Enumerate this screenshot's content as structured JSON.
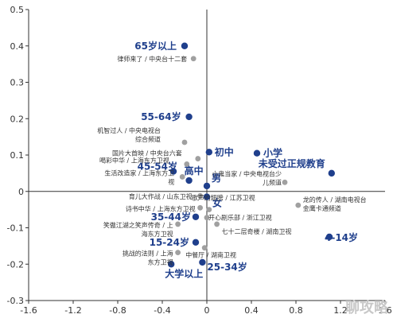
{
  "chart_data": {
    "type": "scatter",
    "title": "",
    "xlabel": "",
    "ylabel": "",
    "xlim": [
      -1.6,
      1.6
    ],
    "ylim": [
      -0.3,
      0.5
    ],
    "xticks": [
      "-1.6",
      "-1.2",
      "-0.8",
      "-0.4",
      "0",
      "0.4",
      "0.8",
      "1.2",
      "1.6"
    ],
    "yticks": [
      "0.5",
      "0.4",
      "0.3",
      "0.2",
      "0.1",
      "0",
      "-0.1",
      "-0.2",
      "-0.3"
    ],
    "grid": false,
    "colors": {
      "demographic": "#1f3f8c",
      "program": "#a0a0a0",
      "axis": "#333333"
    },
    "series": [
      {
        "name": "",
        "points": [
          {
            "label": "65岁以上",
            "x": -0.2,
            "y": 0.4
          },
          {
            "label": "55-64岁",
            "x": -0.16,
            "y": 0.205
          },
          {
            "label": "初中",
            "x": 0.02,
            "y": 0.108
          },
          {
            "label": "小学",
            "x": 0.45,
            "y": 0.105
          },
          {
            "label": "未受过正规教育",
            "x": 1.12,
            "y": 0.05
          },
          {
            "label": "45-54岁",
            "x": -0.3,
            "y": 0.055
          },
          {
            "label": "高中",
            "x": -0.16,
            "y": 0.03
          },
          {
            "label": "男",
            "x": 0.0,
            "y": 0.015
          },
          {
            "label": "女",
            "x": 0.0,
            "y": -0.015
          },
          {
            "label": "35-44岁",
            "x": -0.1,
            "y": -0.07
          },
          {
            "label": "15-24岁",
            "x": -0.1,
            "y": -0.14
          },
          {
            "label": "4-14岁",
            "x": 1.1,
            "y": -0.125
          },
          {
            "label": "大学以上",
            "x": -0.32,
            "y": -0.2
          },
          {
            "label": "25-34岁",
            "x": -0.04,
            "y": -0.195
          }
        ]
      },
      {
        "name": "",
        "points": [
          {
            "label": "律师来了 / 中央台十二套",
            "x": -0.12,
            "y": 0.365
          },
          {
            "label": "机智过人 / 中央电视台综合频道",
            "x": -0.2,
            "y": 0.135
          },
          {
            "label": "国片大首映 / 中央台六套",
            "x": -0.08,
            "y": 0.09
          },
          {
            "label": "喝彩中华 / 上海东方卫视",
            "x": -0.18,
            "y": 0.075
          },
          {
            "label": "生活改造家 / 上海东方卫视",
            "x": -0.22,
            "y": 0.04
          },
          {
            "label": "小鬼当家 / 中央电视台少儿频道",
            "x": 0.7,
            "y": 0.025
          },
          {
            "label": "育儿大作战 / 山东卫视",
            "x": -0.06,
            "y": -0.012
          },
          {
            "label": "诗书中华 / 上海东方卫视",
            "x": -0.06,
            "y": -0.045
          },
          {
            "label": "龙的传人 / 湖南电视台金鹰卡通频道",
            "x": 0.82,
            "y": -0.038
          },
          {
            "label": "歌声的翅膀 / 江苏卫视",
            "x": 0.02,
            "y": -0.05
          },
          {
            "label": "开心剧乐部 / 浙江卫视",
            "x": 0.0,
            "y": -0.072
          },
          {
            "label": "笑傲江湖之笑声传奇 / 上海东方卫视",
            "x": -0.26,
            "y": -0.09
          },
          {
            "label": "七十二层奇楼 / 湖南卫视",
            "x": 0.09,
            "y": -0.09
          },
          {
            "label": "挑战的法则 / 上海东方卫视",
            "x": -0.26,
            "y": -0.168
          },
          {
            "label": "中餐厅 / 湖南卫视",
            "x": -0.02,
            "y": -0.155
          }
        ]
      }
    ]
  },
  "watermark": {
    "text": "聊攻略"
  }
}
